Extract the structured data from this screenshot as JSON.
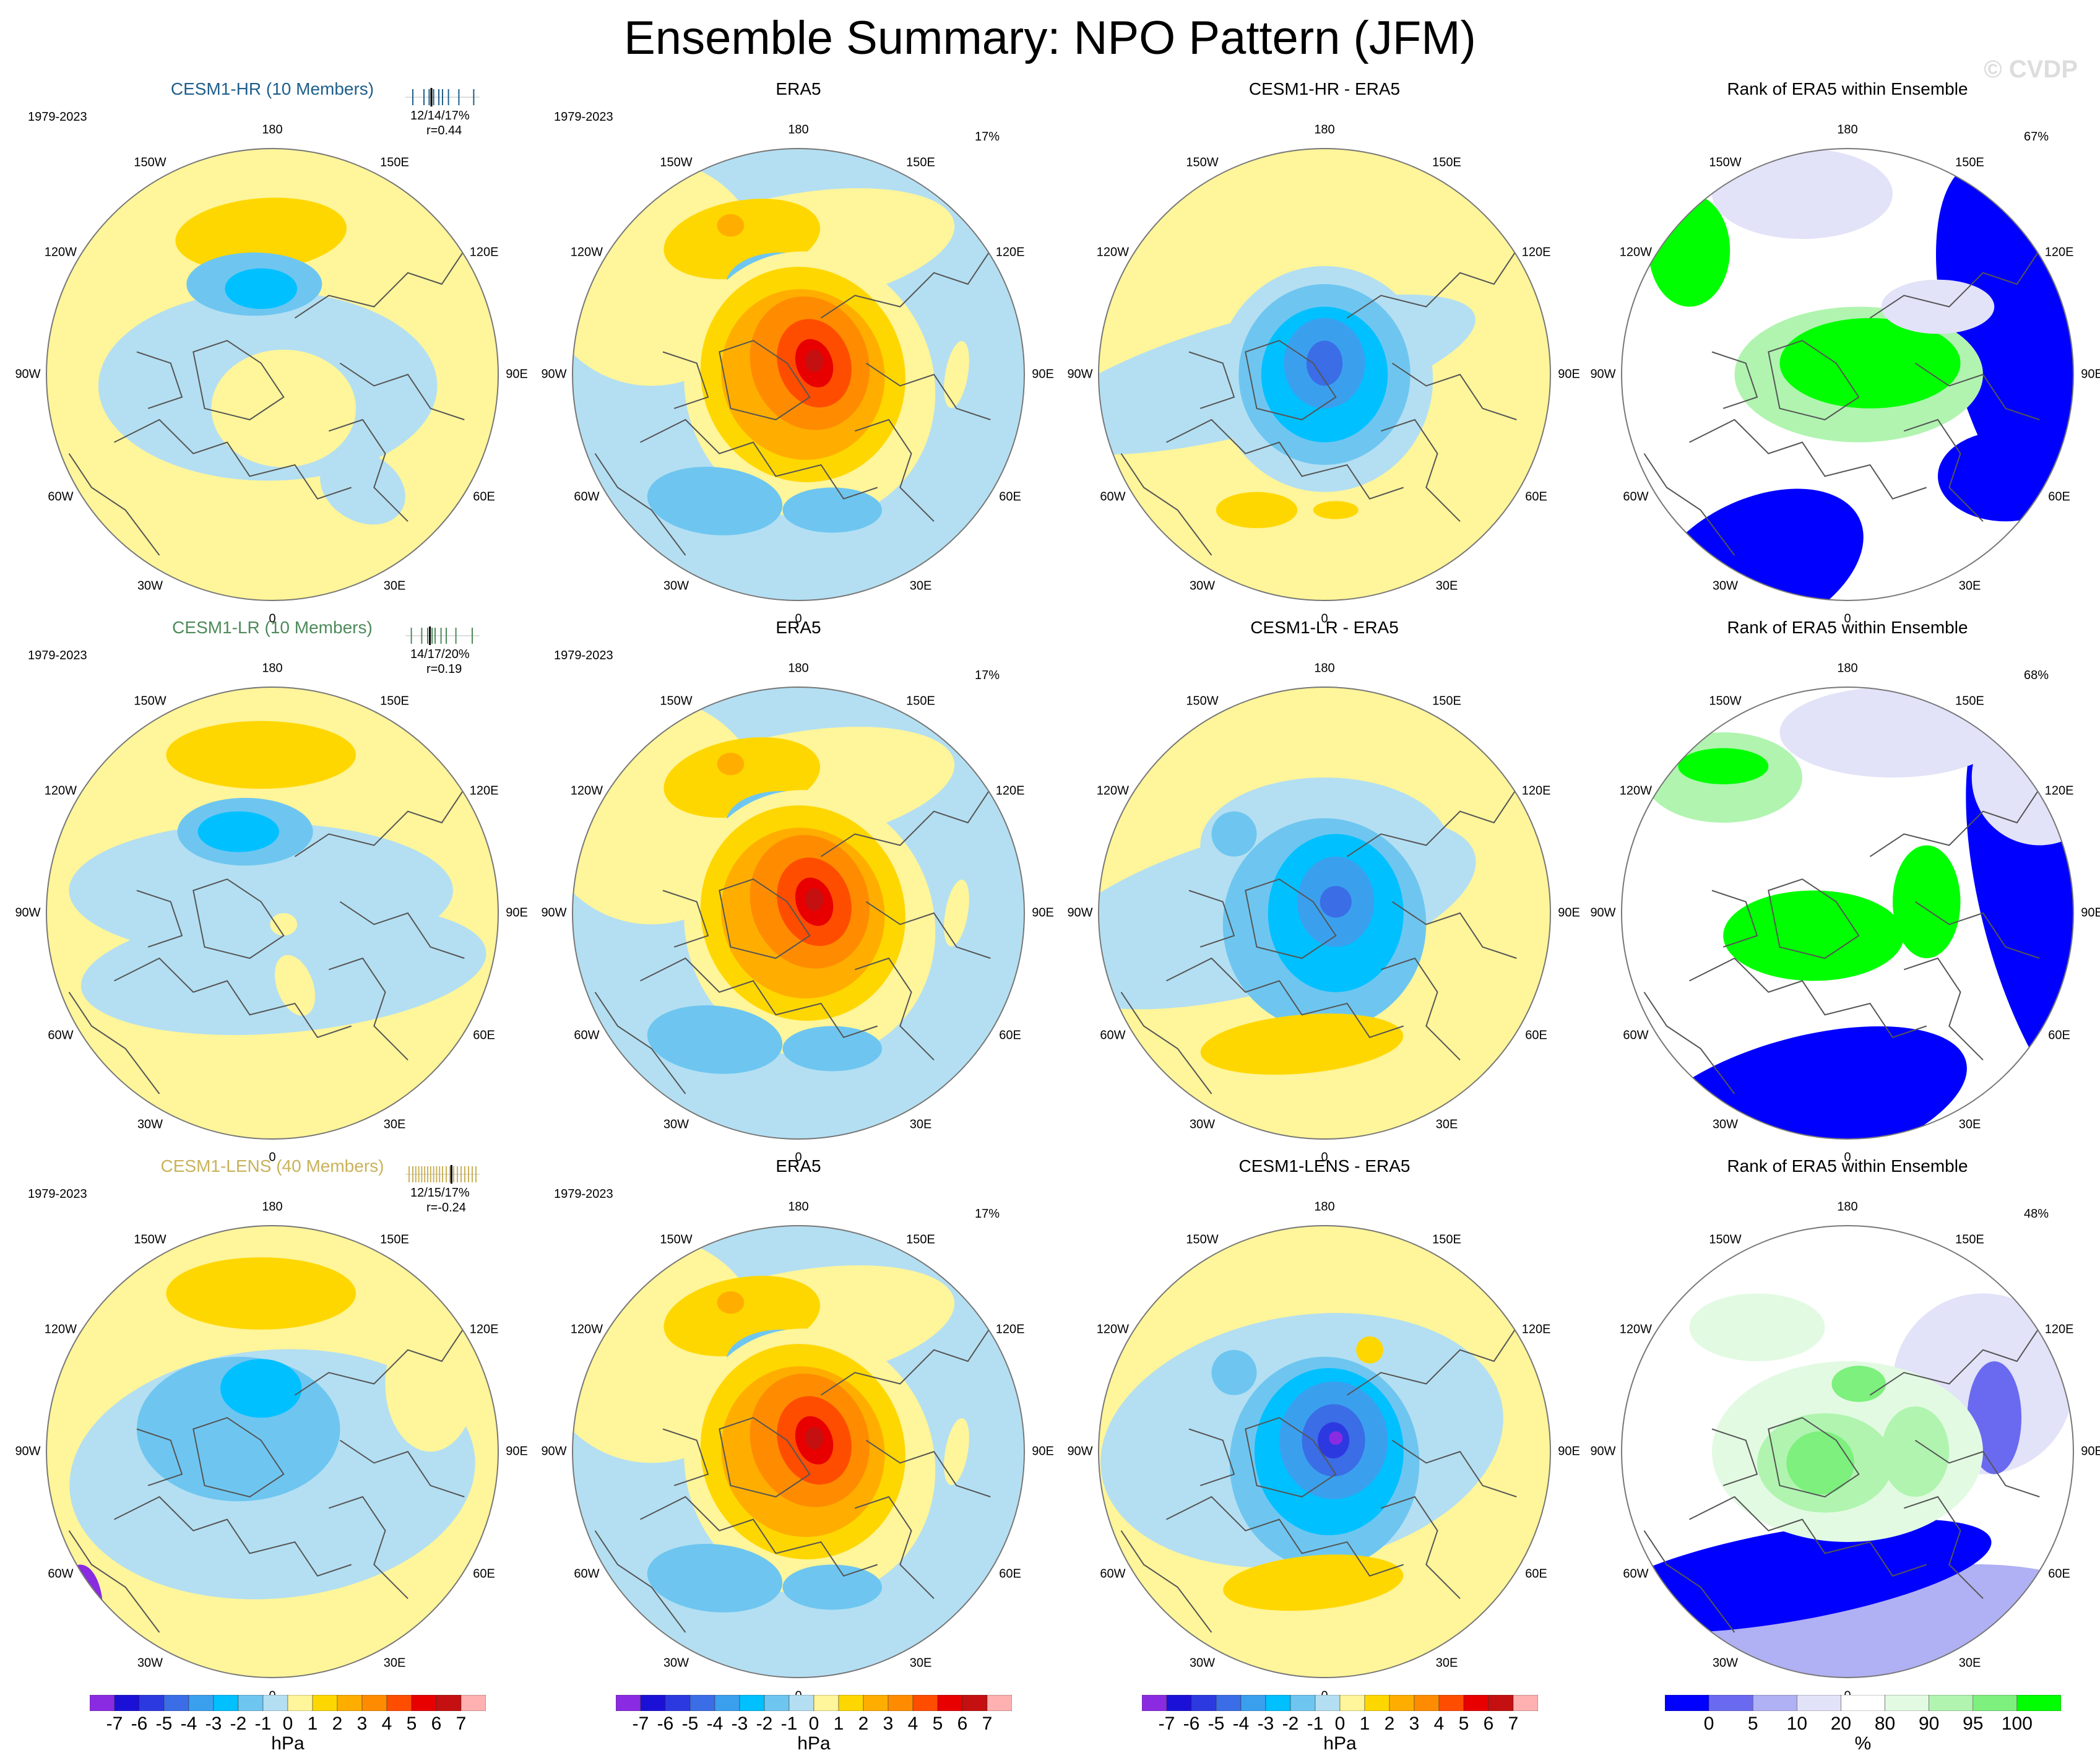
{
  "title": "Ensemble Summary: NPO Pattern (JFM)",
  "watermark": "© CVDP",
  "lon_labels": [
    "180",
    "150E",
    "120E",
    "90E",
    "60E",
    "30E",
    "0",
    "30W",
    "60W",
    "90W",
    "120W",
    "150W"
  ],
  "colors": {
    "hpa": [
      "#8a2be2",
      "#1a10d6",
      "#2d39e0",
      "#3b6de6",
      "#3aa0ee",
      "#00c0ff",
      "#6ec6f0",
      "#b4dff2",
      "#fff59a",
      "#ffd700",
      "#ffae00",
      "#ff8c00",
      "#ff4d00",
      "#e80000",
      "#c41010",
      "#ffb0b0"
    ],
    "rank": [
      "#0000ff",
      "#6a6af0",
      "#b0b0f4",
      "#e2e2f8",
      "#ffffff",
      "#e2fae2",
      "#b0f4b0",
      "#7df07d",
      "#00ff00"
    ]
  },
  "colorbars": {
    "hpa_labels": [
      "-7",
      "-6",
      "-5",
      "-4",
      "-3",
      "-2",
      "-1",
      "0",
      "1",
      "2",
      "3",
      "4",
      "5",
      "6",
      "7"
    ],
    "hpa_units": "hPa",
    "rank_labels": [
      "0",
      "5",
      "10",
      "20",
      "80",
      "90",
      "95",
      "100"
    ],
    "rank_units": "%"
  },
  "rows": [
    {
      "model_title": "CESM1-HR (10 Members)",
      "model_color": "#1f5f8b",
      "period": "1979-2023",
      "stats_1": "12/14/17%",
      "stats_2": "r=0.44",
      "obs_title": "ERA5",
      "obs_period": "1979-2023",
      "obs_pct": "17%",
      "diff_title": "CESM1-HR - ERA5",
      "rank_title": "Rank of ERA5 within Ensemble",
      "rank_pct": "67%",
      "ticks": [
        0.1,
        0.25,
        0.32,
        0.38,
        0.45,
        0.5,
        0.58,
        0.72,
        0.92
      ],
      "obs_tick": 0.35
    },
    {
      "model_title": "CESM1-LR (10 Members)",
      "model_color": "#4e8a5a",
      "period": "1979-2023",
      "stats_1": "14/17/20%",
      "stats_2": "r=0.19",
      "obs_title": "ERA5",
      "obs_period": "1979-2023",
      "obs_pct": "17%",
      "diff_title": "CESM1-LR - ERA5",
      "rank_title": "Rank of ERA5 within Ensemble",
      "rank_pct": "68%",
      "ticks": [
        0.08,
        0.22,
        0.3,
        0.36,
        0.4,
        0.48,
        0.55,
        0.68,
        0.9
      ],
      "obs_tick": 0.33
    },
    {
      "model_title": "CESM1-LENS (40 Members)",
      "model_color": "#c9b25a",
      "period": "1979-2023",
      "stats_1": "12/15/17%",
      "stats_2": "r=-0.24",
      "obs_title": "ERA5",
      "obs_period": "1979-2023",
      "obs_pct": "17%",
      "diff_title": "CESM1-LENS - ERA5",
      "rank_title": "Rank of ERA5 within Ensemble",
      "rank_pct": "48%",
      "ticks": [
        0.05,
        0.1,
        0.14,
        0.18,
        0.22,
        0.26,
        0.3,
        0.34,
        0.38,
        0.42,
        0.46,
        0.5,
        0.55,
        0.6,
        0.65,
        0.7,
        0.75,
        0.8,
        0.85,
        0.9,
        0.95
      ],
      "obs_tick": 0.62
    }
  ]
}
